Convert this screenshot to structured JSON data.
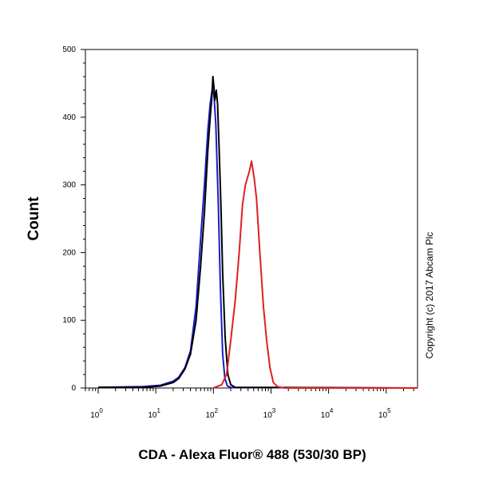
{
  "chart_data": {
    "type": "line",
    "xlabel": "CDA - Alexa Fluor® 488 (530/30 BP)",
    "ylabel": "Count",
    "xscale": "log",
    "xlim": [
      0.6,
      350000
    ],
    "ylim": [
      0,
      500
    ],
    "x_major_ticks": [
      {
        "exp": 0,
        "base": "10",
        "sup": "0"
      },
      {
        "exp": 1,
        "base": "10",
        "sup": "1"
      },
      {
        "exp": 2,
        "base": "10",
        "sup": "2"
      },
      {
        "exp": 3,
        "base": "10",
        "sup": "3"
      },
      {
        "exp": 4,
        "base": "10",
        "sup": "4"
      },
      {
        "exp": 5,
        "base": "10",
        "sup": "5"
      }
    ],
    "y_ticks": [
      {
        "value": 0,
        "label": "0"
      },
      {
        "value": 100,
        "label": "100"
      },
      {
        "value": 200,
        "label": "200"
      },
      {
        "value": 300,
        "label": "300"
      },
      {
        "value": 400,
        "label": "400"
      },
      {
        "value": 500,
        "label": "500"
      }
    ],
    "series": [
      {
        "color": "#1c1cc8",
        "points": [
          [
            1,
            1
          ],
          [
            6,
            2
          ],
          [
            12,
            4
          ],
          [
            20,
            10
          ],
          [
            25,
            16
          ],
          [
            32,
            30
          ],
          [
            40,
            55
          ],
          [
            50,
            120
          ],
          [
            60,
            220
          ],
          [
            70,
            300
          ],
          [
            80,
            380
          ],
          [
            88,
            420
          ],
          [
            95,
            440
          ],
          [
            102,
            435
          ],
          [
            110,
            390
          ],
          [
            122,
            270
          ],
          [
            132,
            150
          ],
          [
            145,
            50
          ],
          [
            158,
            15
          ],
          [
            175,
            3
          ],
          [
            200,
            1
          ],
          [
            350000,
            0
          ]
        ]
      },
      {
        "color": "#000000",
        "points": [
          [
            1,
            1
          ],
          [
            6,
            1
          ],
          [
            12,
            3
          ],
          [
            20,
            8
          ],
          [
            25,
            14
          ],
          [
            32,
            28
          ],
          [
            40,
            50
          ],
          [
            50,
            100
          ],
          [
            60,
            180
          ],
          [
            70,
            260
          ],
          [
            80,
            350
          ],
          [
            88,
            400
          ],
          [
            94,
            430
          ],
          [
            98,
            460
          ],
          [
            102,
            445
          ],
          [
            106,
            425
          ],
          [
            112,
            440
          ],
          [
            118,
            420
          ],
          [
            125,
            360
          ],
          [
            135,
            270
          ],
          [
            145,
            170
          ],
          [
            160,
            75
          ],
          [
            178,
            20
          ],
          [
            200,
            5
          ],
          [
            240,
            1
          ],
          [
            350000,
            0
          ]
        ]
      },
      {
        "color": "#e02020",
        "points": [
          [
            100,
            0
          ],
          [
            140,
            5
          ],
          [
            170,
            20
          ],
          [
            200,
            70
          ],
          [
            240,
            130
          ],
          [
            280,
            200
          ],
          [
            320,
            270
          ],
          [
            360,
            300
          ],
          [
            420,
            320
          ],
          [
            460,
            335
          ],
          [
            510,
            310
          ],
          [
            560,
            280
          ],
          [
            640,
            200
          ],
          [
            740,
            120
          ],
          [
            840,
            70
          ],
          [
            960,
            30
          ],
          [
            1100,
            8
          ],
          [
            1300,
            2
          ],
          [
            1700,
            0
          ],
          [
            350000,
            0
          ]
        ]
      }
    ]
  },
  "copyright": "Copyright (c) 2017 Abcam Plc"
}
